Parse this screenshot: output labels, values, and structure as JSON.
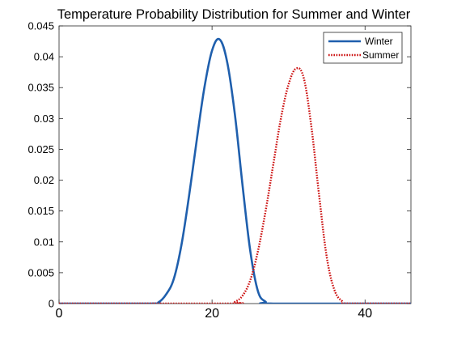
{
  "chart_data": {
    "type": "line",
    "title": "Temperature Probability Distribution for Summer and Winter",
    "xlabel": "",
    "ylabel": "",
    "xlim": [
      0,
      46
    ],
    "ylim": [
      0,
      0.045
    ],
    "x_ticks": [
      0,
      20,
      40
    ],
    "x_tick_labels": [
      "0",
      "20",
      "40"
    ],
    "y_ticks": [
      0,
      0.005,
      0.01,
      0.015,
      0.02,
      0.025,
      0.03,
      0.035,
      0.04,
      0.045
    ],
    "y_tick_labels": [
      "0",
      "0.005",
      "0.01",
      "0.015",
      "0.02",
      "0.025",
      "0.03",
      "0.035",
      "0.04",
      "0.045"
    ],
    "grid": false,
    "legend_position": "top-right",
    "series": [
      {
        "name": "Winter",
        "color": "#1f5fad",
        "style": "solid",
        "x": [
          0,
          12,
          13,
          14,
          15,
          16,
          17,
          18,
          19,
          20,
          21,
          22,
          23,
          24,
          25,
          26,
          27,
          28,
          46
        ],
        "y": [
          0,
          0,
          0.0002,
          0.0015,
          0.004,
          0.0095,
          0.0175,
          0.0265,
          0.035,
          0.041,
          0.0428,
          0.039,
          0.0305,
          0.019,
          0.0085,
          0.002,
          0.0003,
          0,
          0
        ]
      },
      {
        "name": "Summer",
        "color": "#cc1010",
        "style": "dotted",
        "x": [
          0,
          22,
          23,
          24,
          25,
          26,
          27,
          28,
          29,
          30,
          31,
          32,
          33,
          34,
          35,
          36,
          37,
          38,
          46
        ],
        "y": [
          0,
          0,
          0.0003,
          0.0013,
          0.0038,
          0.0085,
          0.015,
          0.0225,
          0.03,
          0.0355,
          0.0381,
          0.0365,
          0.0285,
          0.0175,
          0.0075,
          0.0022,
          0.0004,
          0,
          0
        ]
      }
    ]
  }
}
